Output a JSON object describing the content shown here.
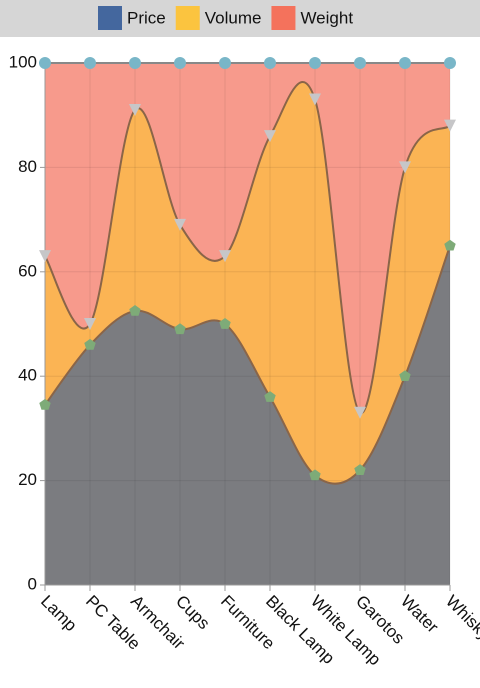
{
  "chart_data": {
    "type": "stacked_area",
    "categories": [
      "Lamp",
      "PC Table",
      "Armchair",
      "Cups",
      "Furniture",
      "Black Lamp",
      "White Lamp",
      "Garotos",
      "Water",
      "Whisky"
    ],
    "series": [
      {
        "name": "Price",
        "color": "#44679e",
        "fill": "#7b7c80",
        "marker": "pentagon",
        "marker_color": "#7eab78",
        "values": [
          34.5,
          46,
          52.5,
          49,
          50,
          36,
          21,
          22,
          40,
          65
        ]
      },
      {
        "name": "Volume",
        "color": "#fbc43f",
        "fill": "#fbb454",
        "marker": "triangle",
        "marker_color": "#c6c6c8",
        "values": [
          28.5,
          4,
          38.5,
          20,
          13,
          50,
          72,
          11,
          40,
          23
        ]
      },
      {
        "name": "Weight",
        "color": "#f4725c",
        "fill": "#f79a8c",
        "marker": "circle",
        "marker_color": "#79b6c8",
        "values": [
          37,
          50,
          9,
          31,
          37,
          14,
          7,
          67,
          20,
          12
        ]
      }
    ],
    "ylim": [
      0,
      100
    ],
    "yticks": [
      0,
      20,
      40,
      60,
      80,
      100
    ],
    "grid": true,
    "legend": "top"
  }
}
